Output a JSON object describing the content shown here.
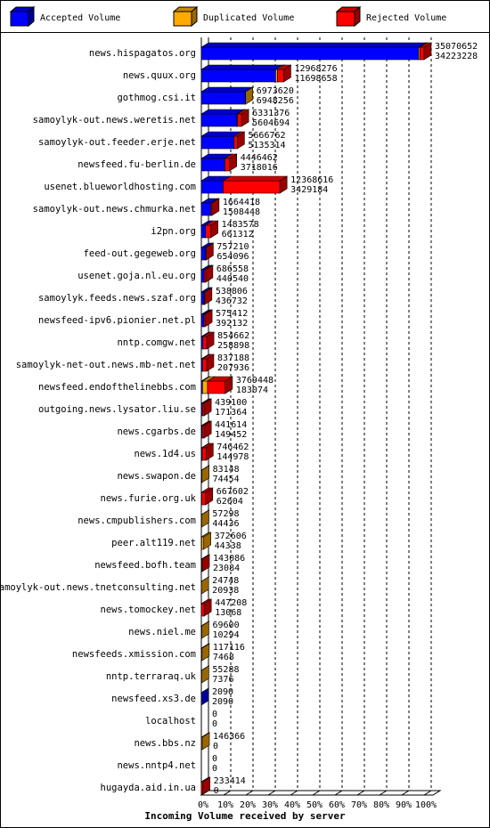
{
  "chart_data": {
    "type": "bar",
    "orientation": "horizontal",
    "stacked": true,
    "title": "Incoming Volume received by server",
    "categories": [
      "news.hispagatos.org",
      "news.quux.org",
      "gothmog.csi.it",
      "samoylyk-out.news.weretis.net",
      "samoylyk-out.feeder.erje.net",
      "newsfeed.fu-berlin.de",
      "usenet.blueworldhosting.com",
      "samoylyk-out.news.chmurka.net",
      "i2pn.org",
      "feed-out.gegeweb.org",
      "usenet.goja.nl.eu.org",
      "samoylyk.feeds.news.szaf.org",
      "newsfeed-ipv6.pionier.net.pl",
      "nntp.comgw.net",
      "samoylyk-net-out.news.mb-net.net",
      "newsfeed.endofthelinebbs.com",
      "outgoing.news.lysator.liu.se",
      "news.cgarbs.de",
      "news.1d4.us",
      "news.swapon.de",
      "news.furie.org.uk",
      "news.cmpublishers.com",
      "peer.alt119.net",
      "newsfeed.bofh.team",
      "samoylyk-out.news.tnetconsulting.net",
      "news.tomockey.net",
      "news.niel.me",
      "newsfeeds.xmission.com",
      "nntp.terraraq.uk",
      "newsfeed.xs3.de",
      "localhost",
      "news.bbs.nz",
      "news.nntp4.net",
      "hugayda.aid.in.ua"
    ],
    "series": [
      {
        "name": "Accepted Volume",
        "color": "#0000ff",
        "values": [
          34223228,
          11698658,
          6948256,
          5604694,
          5135314,
          3718016,
          3429184,
          1508448,
          661312,
          654096,
          440540,
          436732,
          392132,
          258898,
          207936,
          183074,
          171364,
          149452,
          144978,
          74454,
          62604,
          44436,
          44338,
          23084,
          20938,
          13068,
          10294,
          7468,
          7376,
          2090,
          0,
          0,
          0,
          0
        ]
      },
      {
        "name": "Duplicated Volume",
        "color": "#ffaa00",
        "values": [
          200000,
          300000,
          25364,
          100000,
          0,
          0,
          0,
          0,
          0,
          0,
          0,
          0,
          0,
          0,
          0,
          800000,
          0,
          0,
          0,
          8694,
          0,
          12862,
          328268,
          0,
          3810,
          0,
          59306,
          109648,
          47912,
          0,
          0,
          146366,
          0,
          0
        ]
      },
      {
        "name": "Rejected Volume",
        "color": "#ff0000",
        "values": [
          647424,
          969618,
          0,
          626682,
          531448,
          728446,
          8939432,
          155970,
          822266,
          103114,
          246018,
          102074,
          183280,
          595764,
          629252,
          2786374,
          267736,
          292162,
          601484,
          0,
          604998,
          0,
          0,
          120002,
          0,
          434140,
          0,
          0,
          0,
          0,
          0,
          0,
          0,
          233414
        ]
      }
    ],
    "totals": [
      35070652,
      12968276,
      6973620,
      6331376,
      5666762,
      4446462,
      12368616,
      1664418,
      1483578,
      757210,
      686558,
      538806,
      575412,
      854662,
      837188,
      3769448,
      439100,
      441614,
      746462,
      83148,
      667602,
      57298,
      372606,
      143086,
      24748,
      447208,
      69600,
      117116,
      55288,
      2090,
      0,
      146366,
      0,
      233414
    ],
    "xlim": [
      0,
      35070652
    ],
    "xticks": [
      {
        "value": 0,
        "label": "0%"
      },
      {
        "value": 3507065.2,
        "label": "10%"
      },
      {
        "value": 7014130.4,
        "label": "20%"
      },
      {
        "value": 10521195.6,
        "label": "30%"
      },
      {
        "value": 14028260.8,
        "label": "40%"
      },
      {
        "value": 17535326,
        "label": "50%"
      },
      {
        "value": 21042391.2,
        "label": "60%"
      },
      {
        "value": 24549456.4,
        "label": "70%"
      },
      {
        "value": 28056521.6,
        "label": "80%"
      },
      {
        "value": 31563586.8,
        "label": "90%"
      },
      {
        "value": 35070652,
        "label": "100%"
      }
    ],
    "grid": true
  }
}
